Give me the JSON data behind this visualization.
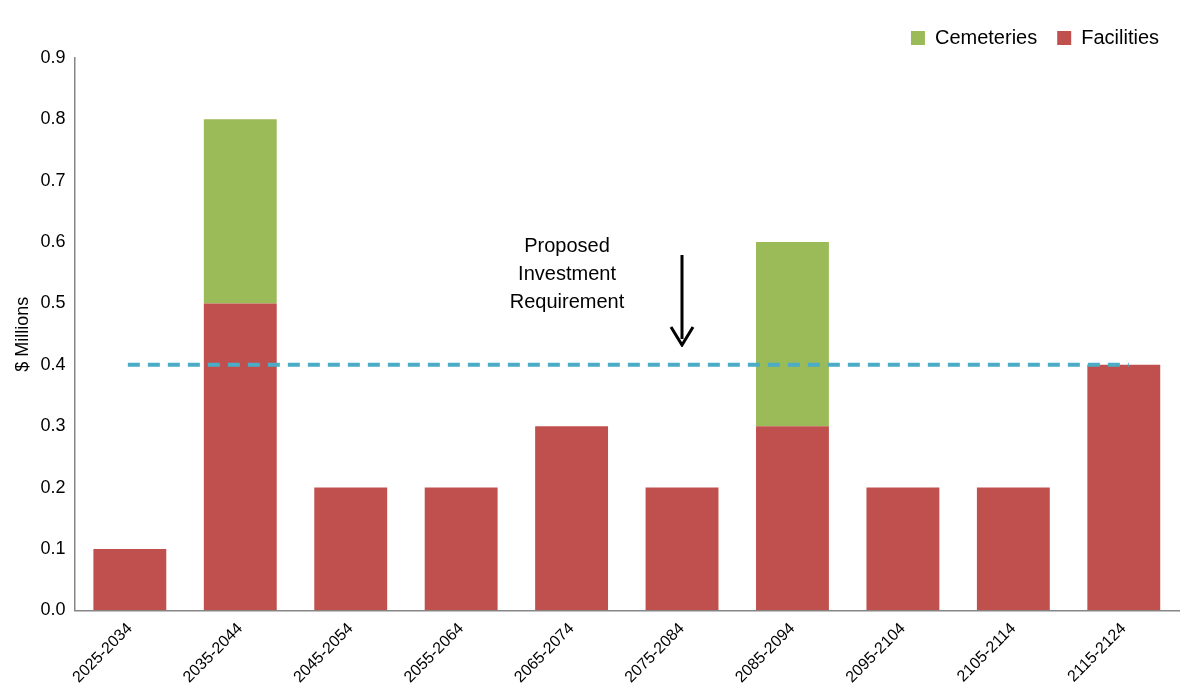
{
  "chart_data": {
    "type": "bar",
    "stacked": true,
    "ylabel": "$ Millions",
    "categories": [
      "2025-2034",
      "2035-2044",
      "2045-2054",
      "2055-2064",
      "2065-2074",
      "2075-2084",
      "2085-2094",
      "2095-2104",
      "2105-2114",
      "2115-2124"
    ],
    "series": [
      {
        "name": "Facilities",
        "color": "#c0504d",
        "values": [
          0.1,
          0.5,
          0.2,
          0.2,
          0.3,
          0.2,
          0.3,
          0.2,
          0.2,
          0.4
        ]
      },
      {
        "name": "Cemeteries",
        "color": "#9bbb59",
        "values": [
          0,
          0.3,
          0,
          0,
          0,
          0,
          0.3,
          0,
          0,
          0
        ]
      }
    ],
    "ylim": [
      0,
      0.9
    ],
    "yticks": [
      {
        "value": 0,
        "label": "0.0"
      },
      0.1,
      0.2,
      0.3,
      0.4,
      0.5,
      0.6,
      0.7,
      0.8,
      0.9
    ],
    "grid": false,
    "legend": "top right",
    "ref_lines": [
      {
        "axis": "y",
        "value": 0.4,
        "label": "Proposed Investment Requirement",
        "color": "#4bacc6",
        "line_style": "dashed"
      }
    ]
  }
}
